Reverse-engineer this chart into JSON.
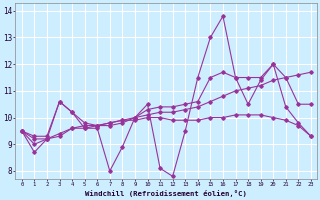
{
  "xlabel": "Windchill (Refroidissement éolien,°C)",
  "background_color": "#cceeff",
  "grid_color": "#ffffff",
  "line_color": "#993399",
  "xlim": [
    -0.5,
    23.5
  ],
  "ylim": [
    7.7,
    14.3
  ],
  "yticks": [
    8,
    9,
    10,
    11,
    12,
    13,
    14
  ],
  "xticks": [
    0,
    1,
    2,
    3,
    4,
    5,
    6,
    7,
    8,
    9,
    10,
    11,
    12,
    13,
    14,
    15,
    16,
    17,
    18,
    19,
    20,
    21,
    22,
    23
  ],
  "series": [
    {
      "x": [
        0,
        1,
        2,
        3,
        4,
        5,
        6,
        7,
        8,
        9,
        10,
        11,
        12,
        13,
        14,
        15,
        16,
        17,
        18,
        19,
        20,
        21,
        22,
        23
      ],
      "y": [
        9.5,
        8.7,
        9.2,
        10.6,
        10.2,
        9.6,
        9.6,
        8.0,
        8.9,
        10.0,
        10.5,
        8.1,
        7.8,
        9.5,
        11.5,
        13.0,
        13.8,
        11.5,
        10.5,
        11.4,
        12.0,
        10.4,
        9.8,
        9.3
      ]
    },
    {
      "x": [
        0,
        1,
        2,
        3,
        4,
        5,
        6,
        7,
        8,
        9,
        10,
        11,
        12,
        13,
        14,
        15,
        16,
        17,
        18,
        19,
        20,
        21,
        22,
        23
      ],
      "y": [
        9.5,
        9.3,
        9.3,
        10.6,
        10.2,
        9.8,
        9.7,
        9.7,
        9.8,
        10.0,
        10.3,
        10.4,
        10.4,
        10.5,
        10.6,
        11.5,
        11.7,
        11.5,
        11.5,
        11.5,
        12.0,
        11.5,
        10.5,
        10.5
      ]
    },
    {
      "x": [
        0,
        1,
        2,
        3,
        4,
        5,
        6,
        7,
        8,
        9,
        10,
        11,
        12,
        13,
        14,
        15,
        16,
        17,
        18,
        19,
        20,
        21,
        22,
        23
      ],
      "y": [
        9.5,
        9.2,
        9.2,
        9.4,
        9.6,
        9.7,
        9.7,
        9.8,
        9.9,
        10.0,
        10.1,
        10.2,
        10.2,
        10.3,
        10.4,
        10.6,
        10.8,
        11.0,
        11.1,
        11.2,
        11.4,
        11.5,
        11.6,
        11.7
      ]
    },
    {
      "x": [
        0,
        1,
        2,
        3,
        4,
        5,
        6,
        7,
        8,
        9,
        10,
        11,
        12,
        13,
        14,
        15,
        16,
        17,
        18,
        19,
        20,
        21,
        22,
        23
      ],
      "y": [
        9.5,
        9.0,
        9.2,
        9.3,
        9.6,
        9.6,
        9.7,
        9.8,
        9.9,
        9.9,
        10.0,
        10.0,
        9.9,
        9.9,
        9.9,
        10.0,
        10.0,
        10.1,
        10.1,
        10.1,
        10.0,
        9.9,
        9.7,
        9.3
      ]
    }
  ]
}
